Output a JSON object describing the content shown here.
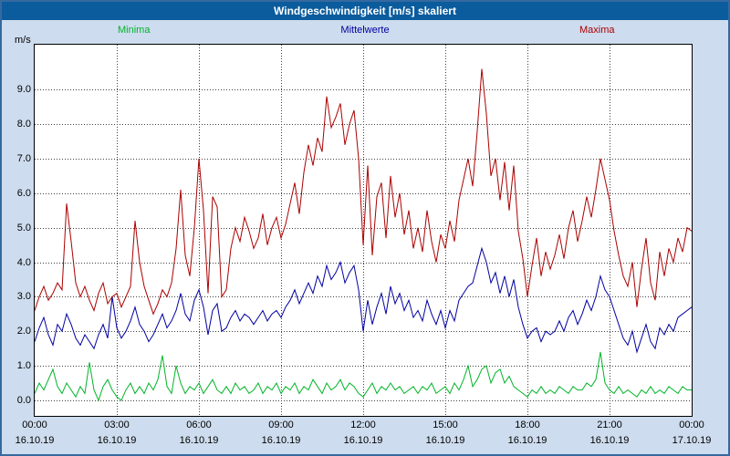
{
  "window": {
    "title": "Windgeschwindigkeit [m/s] skaliert"
  },
  "chart_data": {
    "type": "line",
    "title": "Windgeschwindigkeit [m/s] skaliert",
    "xlabel": "",
    "ylabel": "m/s",
    "ylim": [
      -0.45,
      10.3
    ],
    "y_ticks": [
      0,
      1,
      2,
      3,
      4,
      5,
      6,
      7,
      8,
      9
    ],
    "grid": "dotted",
    "legend_position": "top",
    "x_ticks": {
      "times": [
        "00:00",
        "03:00",
        "06:00",
        "09:00",
        "12:00",
        "15:00",
        "18:00",
        "21:00",
        "00:00"
      ],
      "dates": [
        "16.10.19",
        "16.10.19",
        "16.10.19",
        "16.10.19",
        "16.10.19",
        "16.10.19",
        "16.10.19",
        "16.10.19",
        "17.10.19"
      ]
    },
    "x_sampling": "10-minute intervals, 16.10.19 00:00 through 17.10.19 00:00",
    "series": [
      {
        "name": "Minima",
        "color": "#00b428",
        "values": [
          0.2,
          0.5,
          0.3,
          0.6,
          0.9,
          0.4,
          0.2,
          0.5,
          0.3,
          0.1,
          0.4,
          0.2,
          1.1,
          0.3,
          0.0,
          0.4,
          0.6,
          0.3,
          0.1,
          0.0,
          0.3,
          0.5,
          0.2,
          0.4,
          0.2,
          0.5,
          0.3,
          0.6,
          1.3,
          0.4,
          0.2,
          1.0,
          0.5,
          0.2,
          0.4,
          0.3,
          0.5,
          0.2,
          0.4,
          0.6,
          0.3,
          0.2,
          0.4,
          0.2,
          0.5,
          0.3,
          0.4,
          0.2,
          0.3,
          0.5,
          0.2,
          0.4,
          0.3,
          0.5,
          0.2,
          0.4,
          0.3,
          0.5,
          0.2,
          0.4,
          0.3,
          0.6,
          0.4,
          0.2,
          0.5,
          0.3,
          0.4,
          0.6,
          0.3,
          0.5,
          0.4,
          0.2,
          0.1,
          0.3,
          0.5,
          0.2,
          0.4,
          0.3,
          0.5,
          0.3,
          0.4,
          0.2,
          0.3,
          0.4,
          0.2,
          0.4,
          0.3,
          0.5,
          0.2,
          0.3,
          0.4,
          0.2,
          0.5,
          0.3,
          0.6,
          1.0,
          0.4,
          0.6,
          0.9,
          1.0,
          0.5,
          0.8,
          0.9,
          0.5,
          0.7,
          0.4,
          0.3,
          0.2,
          0.1,
          0.3,
          0.2,
          0.4,
          0.2,
          0.3,
          0.2,
          0.4,
          0.3,
          0.2,
          0.4,
          0.3,
          0.3,
          0.5,
          0.4,
          0.6,
          1.4,
          0.5,
          0.3,
          0.2,
          0.4,
          0.2,
          0.3,
          0.2,
          0.1,
          0.3,
          0.2,
          0.4,
          0.2,
          0.3,
          0.2,
          0.4,
          0.3,
          0.2,
          0.4,
          0.3,
          0.3
        ]
      },
      {
        "name": "Mittelwerte",
        "color": "#0000a0",
        "values": [
          1.7,
          2.1,
          2.4,
          1.9,
          1.6,
          2.2,
          2.0,
          2.5,
          2.2,
          1.8,
          1.6,
          1.9,
          1.7,
          1.5,
          1.9,
          2.2,
          1.8,
          3.0,
          2.1,
          1.8,
          2.0,
          2.3,
          2.7,
          2.2,
          2.0,
          1.7,
          1.9,
          2.2,
          2.5,
          2.1,
          2.3,
          2.6,
          3.1,
          2.5,
          2.3,
          2.9,
          3.2,
          2.7,
          1.9,
          2.6,
          2.8,
          2.0,
          2.1,
          2.4,
          2.6,
          2.3,
          2.5,
          2.4,
          2.2,
          2.4,
          2.6,
          2.3,
          2.5,
          2.6,
          2.4,
          2.7,
          2.9,
          3.2,
          2.8,
          3.1,
          3.4,
          3.1,
          3.6,
          3.3,
          3.9,
          3.5,
          3.7,
          4.0,
          3.4,
          3.7,
          3.9,
          3.2,
          2.0,
          2.9,
          2.2,
          2.7,
          3.1,
          2.5,
          3.3,
          2.8,
          3.1,
          2.6,
          2.9,
          2.4,
          2.6,
          2.3,
          2.9,
          2.5,
          2.2,
          2.6,
          2.1,
          2.6,
          2.3,
          2.9,
          3.1,
          3.3,
          3.4,
          3.9,
          4.4,
          4.0,
          3.4,
          3.7,
          3.1,
          3.6,
          3.0,
          3.5,
          2.7,
          2.2,
          1.8,
          2.0,
          2.1,
          1.7,
          2.0,
          1.9,
          2.0,
          2.3,
          2.0,
          2.4,
          2.6,
          2.2,
          2.5,
          2.9,
          2.6,
          3.0,
          3.6,
          3.2,
          3.0,
          2.6,
          2.2,
          1.8,
          1.6,
          2.0,
          1.4,
          1.8,
          2.2,
          1.7,
          1.5,
          2.1,
          1.9,
          2.2,
          2.0,
          2.4,
          2.5,
          2.6,
          2.7
        ]
      },
      {
        "name": "Maxima",
        "color": "#aa0000",
        "values": [
          2.6,
          3.0,
          3.3,
          2.9,
          3.1,
          3.4,
          3.2,
          5.7,
          4.6,
          3.4,
          3.0,
          3.3,
          2.9,
          2.6,
          3.1,
          3.4,
          2.8,
          3.0,
          3.1,
          2.7,
          3.0,
          3.3,
          5.2,
          4.0,
          3.3,
          2.9,
          2.5,
          2.8,
          3.2,
          3.0,
          3.4,
          4.4,
          6.1,
          4.2,
          3.6,
          5.0,
          7.0,
          5.5,
          3.1,
          5.9,
          5.6,
          3.0,
          3.2,
          4.4,
          5.0,
          4.6,
          5.3,
          4.9,
          4.4,
          4.7,
          5.4,
          4.5,
          5.0,
          5.3,
          4.7,
          5.1,
          5.7,
          6.3,
          5.4,
          6.6,
          7.4,
          6.8,
          7.6,
          7.2,
          8.8,
          7.9,
          8.2,
          8.6,
          7.4,
          8.0,
          8.4,
          7.0,
          4.5,
          6.8,
          4.2,
          5.9,
          6.3,
          4.7,
          6.5,
          5.3,
          6.0,
          4.8,
          5.5,
          4.4,
          5.0,
          4.3,
          5.5,
          4.6,
          4.0,
          4.8,
          4.4,
          5.2,
          4.6,
          5.8,
          6.4,
          7.0,
          6.2,
          7.8,
          9.6,
          8.3,
          6.5,
          7.0,
          5.8,
          6.9,
          5.5,
          6.8,
          4.9,
          4.1,
          3.0,
          3.9,
          4.7,
          3.6,
          4.3,
          3.8,
          4.2,
          4.8,
          4.1,
          5.0,
          5.5,
          4.6,
          5.2,
          5.9,
          5.3,
          6.1,
          7.0,
          6.4,
          5.8,
          4.9,
          4.2,
          3.6,
          3.3,
          4.0,
          2.7,
          3.8,
          4.7,
          3.4,
          2.9,
          4.3,
          3.6,
          4.4,
          4.0,
          4.7,
          4.3,
          5.0,
          4.9
        ]
      }
    ]
  }
}
